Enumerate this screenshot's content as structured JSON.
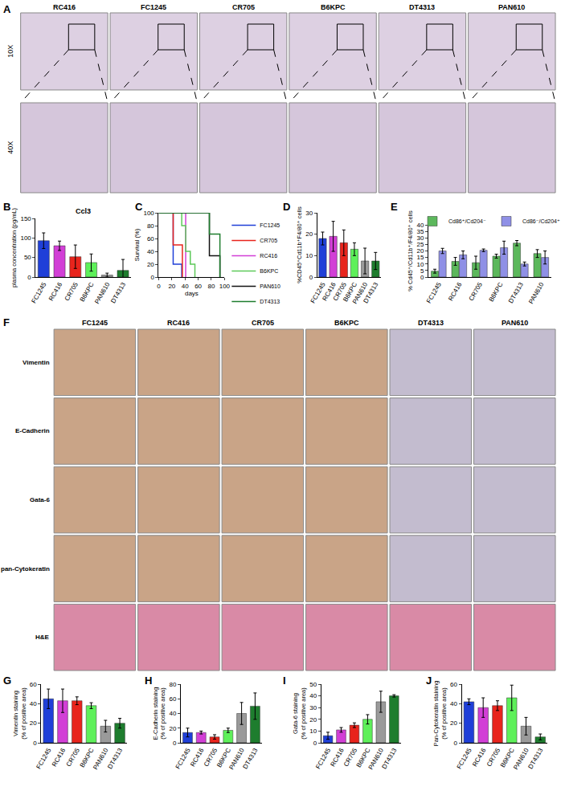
{
  "image_panels": [
    {
      "panel": "A",
      "columns": [
        "RC416",
        "FC1245",
        "CR705",
        "B6KPC",
        "DT4313",
        "PAN610"
      ],
      "rows": [
        "10X",
        "40X"
      ]
    },
    {
      "panel": "F",
      "columns": [
        "FC1245",
        "RC416",
        "CR705",
        "B6KPC",
        "DT4313",
        "PAN610"
      ],
      "rows": [
        "Vimentin",
        "E-Cadherin",
        "Gata-6",
        "pan-Cytokeratin",
        "H&E"
      ]
    }
  ],
  "chart_data": [
    {
      "panel": "B",
      "type": "bar",
      "title": "Ccl3",
      "y_label": "plasma concentration (pg/mL)",
      "categories": [
        "FC1245",
        "RC416",
        "CR705",
        "B6KPC",
        "PAN610",
        "DT4313"
      ],
      "values": [
        93,
        80,
        52,
        37,
        5,
        17
      ],
      "errors": [
        20,
        12,
        30,
        22,
        5,
        28
      ],
      "colors": [
        "#1f3fd8",
        "#d23fd6",
        "#e8241c",
        "#5ef05a",
        "#9a9a9a",
        "#1e7d2e"
      ],
      "ylim": [
        0,
        150
      ],
      "yticks": [
        0,
        50,
        100,
        150
      ],
      "grid": false
    },
    {
      "panel": "C",
      "type": "line",
      "x_label": "days",
      "y_label": "Survival (%)",
      "line_style": "step",
      "series": [
        {
          "name": "FC1245",
          "color": "#1f3fd8",
          "x": [
            0,
            22,
            35
          ],
          "values": [
            100,
            20,
            0
          ]
        },
        {
          "name": "CR705",
          "color": "#e8241c",
          "x": [
            0,
            22,
            36
          ],
          "values": [
            100,
            50,
            0
          ]
        },
        {
          "name": "RC416",
          "color": "#d23fd6",
          "x": [
            0,
            41
          ],
          "values": [
            100,
            0
          ]
        },
        {
          "name": "B6KPC",
          "color": "#5ec95a",
          "x": [
            0,
            35,
            41,
            48,
            55
          ],
          "values": [
            100,
            80,
            40,
            20,
            0
          ]
        },
        {
          "name": "PAN610",
          "color": "#111111",
          "x": [
            0,
            77,
            93
          ],
          "values": [
            100,
            33,
            0
          ]
        },
        {
          "name": "DT4313",
          "color": "#1e7d2e",
          "x": [
            0,
            77,
            93
          ],
          "values": [
            100,
            67,
            0
          ]
        }
      ],
      "xlim": [
        0,
        100
      ],
      "xticks": [
        0,
        20,
        40,
        60,
        80,
        100
      ],
      "ylim": [
        0,
        100
      ],
      "yticks": [
        0,
        20,
        40,
        60,
        80,
        100
      ],
      "grid": false
    },
    {
      "panel": "D",
      "type": "bar",
      "y_label": "%CD45⁺Cd11b⁺F4/80⁺ cells",
      "categories": [
        "FC1245",
        "RC416",
        "CR705",
        "B6KPC",
        "PAN610",
        "DT4313"
      ],
      "values": [
        18,
        19,
        16,
        13,
        7.5,
        7.5
      ],
      "errors": [
        3,
        7,
        6,
        3,
        6,
        4
      ],
      "colors": [
        "#1f3fd8",
        "#d23fd6",
        "#e8241c",
        "#5ef05a",
        "#9a9a9a",
        "#1e7d2e"
      ],
      "ylim": [
        0,
        30
      ],
      "yticks": [
        0,
        10,
        20,
        30
      ],
      "grid": false
    },
    {
      "panel": "E",
      "type": "bar",
      "y_label": "% Cd45⁺/Cd11b⁺/F4/80⁺ cells",
      "categories": [
        "FC1245",
        "RC416",
        "CR705",
        "B6KPC",
        "DT4313",
        "PAN610"
      ],
      "series": [
        {
          "name": "Cd86⁺/Cd204⁻",
          "color": "#5cb85c",
          "values": [
            4.5,
            12,
            11,
            16,
            26,
            18
          ],
          "errors": [
            1.5,
            3,
            5,
            1.5,
            2,
            3
          ]
        },
        {
          "name": "Cd86⁻/Cd204⁺",
          "color": "#8f90e6",
          "values": [
            20,
            17,
            20.5,
            22.5,
            10,
            15
          ],
          "errors": [
            2,
            3,
            1,
            5,
            1.5,
            5
          ]
        }
      ],
      "ylim": [
        0,
        40
      ],
      "yticks": [
        0,
        5,
        10,
        15,
        20,
        25,
        30,
        35,
        40
      ],
      "grid": false
    },
    {
      "panel": "G",
      "type": "bar",
      "y_label": "Vimentin staining\n(% of positive area)",
      "categories": [
        "FC1245",
        "RC416",
        "CR705",
        "B6KPC",
        "PAN610",
        "DT4313"
      ],
      "values": [
        45,
        43,
        43,
        38,
        17,
        20
      ],
      "errors": [
        10,
        12,
        4,
        3,
        6,
        5
      ],
      "colors": [
        "#1f3fd8",
        "#d23fd6",
        "#e8241c",
        "#5ef05a",
        "#9a9a9a",
        "#1e7d2e"
      ],
      "ylim": [
        0,
        60
      ],
      "yticks": [
        0,
        20,
        40,
        60
      ],
      "grid": false
    },
    {
      "panel": "H",
      "type": "bar",
      "y_label": "E-Cadherin staining\n(% of positive area)",
      "categories": [
        "FC1245",
        "RC416",
        "CR705",
        "B6KPC",
        "PAN610",
        "DT4313"
      ],
      "values": [
        14,
        14,
        8,
        17,
        40,
        50
      ],
      "errors": [
        6,
        2,
        3,
        3,
        15,
        18
      ],
      "colors": [
        "#1f3fd8",
        "#d23fd6",
        "#e8241c",
        "#5ef05a",
        "#9a9a9a",
        "#1e7d2e"
      ],
      "ylim": [
        0,
        80
      ],
      "yticks": [
        0,
        20,
        40,
        60,
        80
      ],
      "grid": false
    },
    {
      "panel": "I",
      "type": "bar",
      "y_label": "Gata-6 staining\n(% of positive area)",
      "categories": [
        "FC1245",
        "RC416",
        "CR705",
        "B6KPC",
        "PAN610",
        "DT4313"
      ],
      "values": [
        6,
        11,
        15,
        20,
        35,
        40
      ],
      "errors": [
        3,
        2,
        2,
        4,
        9,
        1
      ],
      "colors": [
        "#1f3fd8",
        "#d23fd6",
        "#e8241c",
        "#5ef05a",
        "#9a9a9a",
        "#1e7d2e"
      ],
      "ylim": [
        0,
        50
      ],
      "yticks": [
        0,
        10,
        20,
        30,
        40,
        50
      ],
      "grid": false
    },
    {
      "panel": "J",
      "type": "bar",
      "y_label": "Pan-Cytokeratin staining\n(% of positive area)",
      "categories": [
        "FC1245",
        "RC416",
        "CR705",
        "B6KPC",
        "PAN610",
        "DT4313"
      ],
      "values": [
        42,
        36,
        38,
        46,
        17,
        6
      ],
      "errors": [
        3,
        10,
        5,
        13,
        9,
        3
      ],
      "colors": [
        "#1f3fd8",
        "#d23fd6",
        "#e8241c",
        "#5ef05a",
        "#9a9a9a",
        "#1e7d2e"
      ],
      "ylim": [
        0,
        60
      ],
      "yticks": [
        0,
        20,
        40,
        60
      ],
      "grid": false
    }
  ]
}
